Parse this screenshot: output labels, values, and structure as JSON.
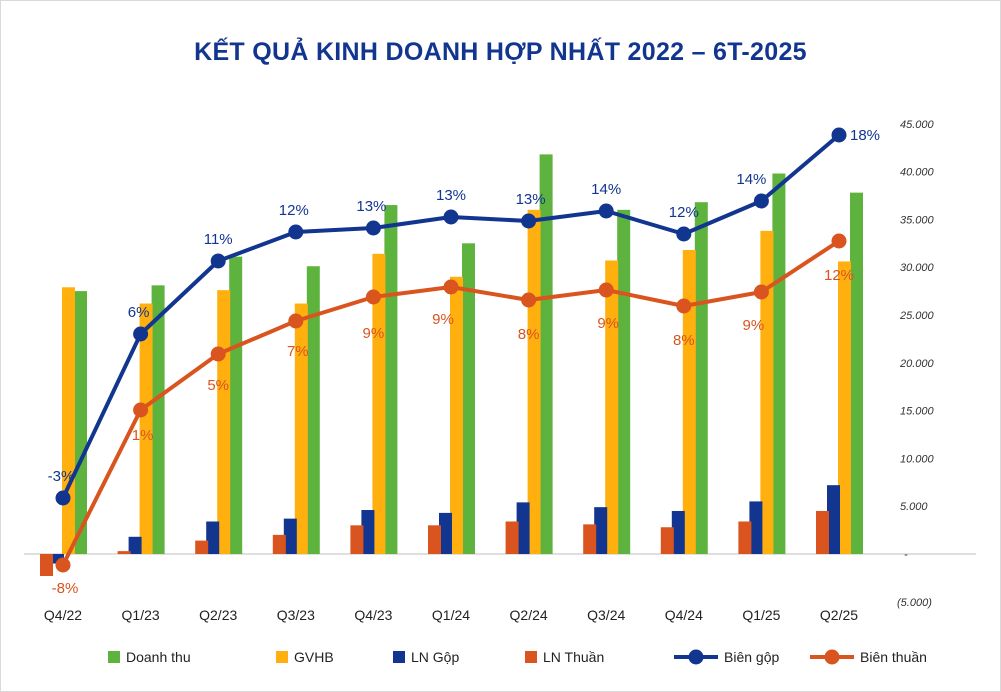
{
  "chart_data": {
    "type": "bar+line",
    "title": "KẾT QUẢ KINH DOANH HỢP NHẤT 2022 – 6T-2025",
    "categories": [
      "Q4/22",
      "Q1/23",
      "Q2/23",
      "Q3/23",
      "Q4/23",
      "Q1/24",
      "Q2/24",
      "Q3/24",
      "Q4/24",
      "Q1/25",
      "Q2/25"
    ],
    "y_axis": {
      "side": "right",
      "min": -5000,
      "max": 45000,
      "ticks": [
        45000,
        40000,
        35000,
        30000,
        25000,
        20000,
        15000,
        10000,
        5000,
        0,
        -5000
      ],
      "tick_labels": [
        "45.000",
        "40.000",
        "35.000",
        "30.000",
        "25.000",
        "20.000",
        "15.000",
        "10.000",
        "5.000",
        "-",
        "(5.000)"
      ]
    },
    "series": [
      {
        "name": "Doanh thu",
        "kind": "bar",
        "color": "#5db33d",
        "values": [
          27500,
          28100,
          31100,
          30100,
          36500,
          32500,
          41800,
          36000,
          36800,
          39800,
          37800
        ]
      },
      {
        "name": "GVHB",
        "kind": "bar",
        "color": "#ffb00f",
        "values": [
          27900,
          26200,
          27600,
          26200,
          31400,
          29000,
          36000,
          30700,
          31800,
          33800,
          30600
        ]
      },
      {
        "name": "LN Gộp",
        "kind": "bar",
        "color": "#12358f",
        "values": [
          -1000,
          1800,
          3400,
          3700,
          4600,
          4300,
          5400,
          4900,
          4500,
          5500,
          7200
        ]
      },
      {
        "name": "LN Thuần",
        "kind": "bar",
        "color": "#d9541e",
        "values": [
          -2300,
          300,
          1400,
          2000,
          3000,
          3000,
          3400,
          3100,
          2800,
          3400,
          4500
        ]
      }
    ],
    "ratio_axis": {
      "min": -10,
      "max": 20
    },
    "ratio_series": [
      {
        "name": "Biên gộp",
        "kind": "line",
        "color": "#12358f",
        "values": [
          -3,
          6,
          11,
          12,
          13,
          13,
          13,
          14,
          12,
          14,
          18
        ],
        "labels": [
          "-3%",
          "6%",
          "11%",
          "12%",
          "13%",
          "13%",
          "13%",
          "14%",
          "12%",
          "14%",
          "18%"
        ]
      },
      {
        "name": "Biên thuần",
        "kind": "line",
        "color": "#d9541e",
        "values": [
          -8,
          1,
          5,
          7,
          9,
          9,
          8,
          9,
          8,
          9,
          12
        ],
        "labels": [
          "-8%",
          "1%",
          "5%",
          "7%",
          "9%",
          "9%",
          "8%",
          "9%",
          "8%",
          "9%",
          "12%"
        ]
      }
    ],
    "legend": [
      "Doanh thu",
      "GVHB",
      "LN Gộp",
      "LN Thuần",
      "Biên gộp",
      "Biên thuần"
    ],
    "legend_position": "bottom"
  }
}
